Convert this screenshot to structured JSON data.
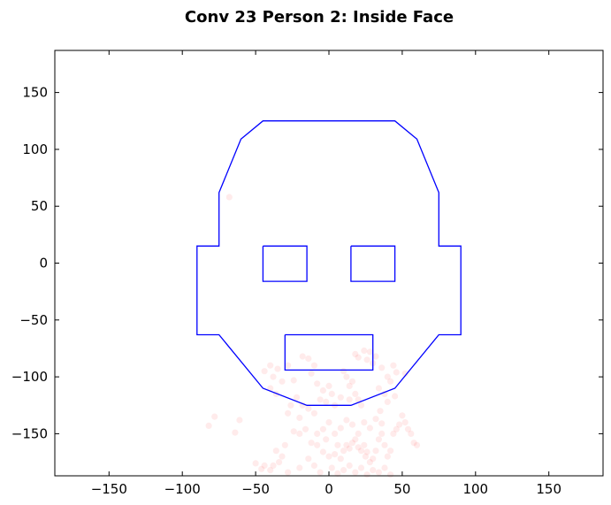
{
  "chart_data": {
    "type": "scatter",
    "title": "Conv 23 Person 2: Inside Face",
    "xlabel": "",
    "ylabel": "",
    "xlim": [
      -187,
      187
    ],
    "ylim": [
      -187,
      187
    ],
    "xticks": [
      -150,
      -100,
      -50,
      0,
      50,
      100,
      150
    ],
    "yticks": [
      -150,
      -100,
      -50,
      0,
      50,
      100,
      150
    ],
    "xtick_labels": [
      "−150",
      "−100",
      "−50",
      "0",
      "50",
      "100",
      "150"
    ],
    "ytick_labels": [
      "−150",
      "−100",
      "−50",
      "0",
      "50",
      "100",
      "150"
    ],
    "grid": false,
    "outline_color": "#0000ff",
    "point_color": "#ff0000",
    "point_opacity": 0.08,
    "face_outline": [
      [
        -30,
        125
      ],
      [
        45,
        125
      ],
      [
        60,
        109
      ],
      [
        75,
        62
      ],
      [
        75,
        15
      ],
      [
        90,
        15
      ],
      [
        90,
        -63
      ],
      [
        75,
        -63
      ],
      [
        45,
        -110
      ],
      [
        15,
        -125
      ],
      [
        -15,
        -125
      ],
      [
        -45,
        -110
      ],
      [
        -75,
        -63
      ],
      [
        -90,
        -63
      ],
      [
        -90,
        15
      ],
      [
        -75,
        15
      ],
      [
        -75,
        62
      ],
      [
        -60,
        109
      ],
      [
        -45,
        125
      ],
      [
        -30,
        125
      ]
    ],
    "left_eye": [
      [
        -45,
        15
      ],
      [
        -15,
        15
      ],
      [
        -15,
        -16
      ],
      [
        -45,
        -16
      ],
      [
        -45,
        15
      ]
    ],
    "right_eye": [
      [
        15,
        15
      ],
      [
        45,
        15
      ],
      [
        45,
        -16
      ],
      [
        15,
        -16
      ],
      [
        15,
        15
      ]
    ],
    "mouth": [
      [
        -30,
        -63
      ],
      [
        30,
        -63
      ],
      [
        30,
        -94
      ],
      [
        -30,
        -94
      ],
      [
        -30,
        -63
      ]
    ],
    "points": [
      [
        -68,
        58
      ],
      [
        -82,
        -143
      ],
      [
        -78,
        -135
      ],
      [
        -61,
        -138
      ],
      [
        -64,
        -149
      ],
      [
        -44,
        -95
      ],
      [
        -40,
        -90
      ],
      [
        -38,
        -100
      ],
      [
        -35,
        -93
      ],
      [
        -32,
        -104
      ],
      [
        -28,
        -90
      ],
      [
        -24,
        -103
      ],
      [
        -18,
        -82
      ],
      [
        -14,
        -84
      ],
      [
        -10,
        -90
      ],
      [
        -40,
        -110
      ],
      [
        -36,
        -115
      ],
      [
        -12,
        -97
      ],
      [
        -8,
        -106
      ],
      [
        -4,
        -112
      ],
      [
        18,
        -80
      ],
      [
        20,
        -83
      ],
      [
        24,
        -77
      ],
      [
        28,
        -78
      ],
      [
        26,
        -85
      ],
      [
        30,
        -88
      ],
      [
        32,
        -82
      ],
      [
        36,
        -92
      ],
      [
        40,
        -100
      ],
      [
        42,
        -104
      ],
      [
        44,
        -90
      ],
      [
        46,
        -96
      ],
      [
        52,
        -97
      ],
      [
        34,
        -110
      ],
      [
        38,
        -115
      ],
      [
        40,
        -122
      ],
      [
        45,
        -117
      ],
      [
        35,
        -130
      ],
      [
        10,
        -95
      ],
      [
        12,
        -100
      ],
      [
        14,
        -108
      ],
      [
        16,
        -104
      ],
      [
        18,
        -115
      ],
      [
        20,
        -120
      ],
      [
        22,
        -125
      ],
      [
        14,
        -120
      ],
      [
        8,
        -118
      ],
      [
        0,
        -108
      ],
      [
        2,
        -115
      ],
      [
        4,
        -125
      ],
      [
        -2,
        -122
      ],
      [
        -6,
        -120
      ],
      [
        -10,
        -132
      ],
      [
        -14,
        -128
      ],
      [
        -18,
        -125
      ],
      [
        -22,
        -118
      ],
      [
        -26,
        -125
      ],
      [
        -28,
        -132
      ],
      [
        -20,
        -136
      ],
      [
        -24,
        -148
      ],
      [
        -20,
        -150
      ],
      [
        -16,
        -146
      ],
      [
        -12,
        -158
      ],
      [
        -8,
        -160
      ],
      [
        -4,
        -166
      ],
      [
        0,
        -170
      ],
      [
        4,
        -168
      ],
      [
        8,
        -172
      ],
      [
        12,
        -160
      ],
      [
        14,
        -163
      ],
      [
        16,
        -158
      ],
      [
        18,
        -155
      ],
      [
        20,
        -162
      ],
      [
        22,
        -165
      ],
      [
        24,
        -160
      ],
      [
        25,
        -170
      ],
      [
        26,
        -166
      ],
      [
        28,
        -175
      ],
      [
        30,
        -172
      ],
      [
        32,
        -165
      ],
      [
        34,
        -155
      ],
      [
        36,
        -150
      ],
      [
        38,
        -160
      ],
      [
        40,
        -170
      ],
      [
        42,
        -165
      ],
      [
        44,
        -150
      ],
      [
        46,
        -146
      ],
      [
        48,
        -142
      ],
      [
        50,
        -134
      ],
      [
        52,
        -140
      ],
      [
        54,
        -146
      ],
      [
        56,
        -150
      ],
      [
        58,
        -158
      ],
      [
        60,
        -160
      ],
      [
        -30,
        -160
      ],
      [
        -32,
        -170
      ],
      [
        -34,
        -175
      ],
      [
        -36,
        -165
      ],
      [
        -38,
        -178
      ],
      [
        -40,
        -182
      ],
      [
        -44,
        -178
      ],
      [
        -46,
        -181
      ],
      [
        -50,
        -176
      ],
      [
        -28,
        -184
      ],
      [
        -20,
        -180
      ],
      [
        -14,
        -172
      ],
      [
        -10,
        -178
      ],
      [
        -6,
        -184
      ],
      [
        2,
        -180
      ],
      [
        6,
        -185
      ],
      [
        10,
        -182
      ],
      [
        14,
        -178
      ],
      [
        18,
        -184
      ],
      [
        22,
        -180
      ],
      [
        26,
        -186
      ],
      [
        30,
        -182
      ],
      [
        34,
        -184
      ],
      [
        38,
        -180
      ],
      [
        42,
        -186
      ],
      [
        20,
        -150
      ],
      [
        16,
        -142
      ],
      [
        12,
        -138
      ],
      [
        8,
        -145
      ],
      [
        4,
        -150
      ],
      [
        0,
        -140
      ],
      [
        -4,
        -146
      ],
      [
        24,
        -140
      ],
      [
        28,
        -145
      ],
      [
        32,
        -137
      ],
      [
        36,
        -141
      ],
      [
        10,
        -165
      ],
      [
        6,
        -160
      ],
      [
        -2,
        -155
      ],
      [
        -8,
        -150
      ]
    ]
  }
}
